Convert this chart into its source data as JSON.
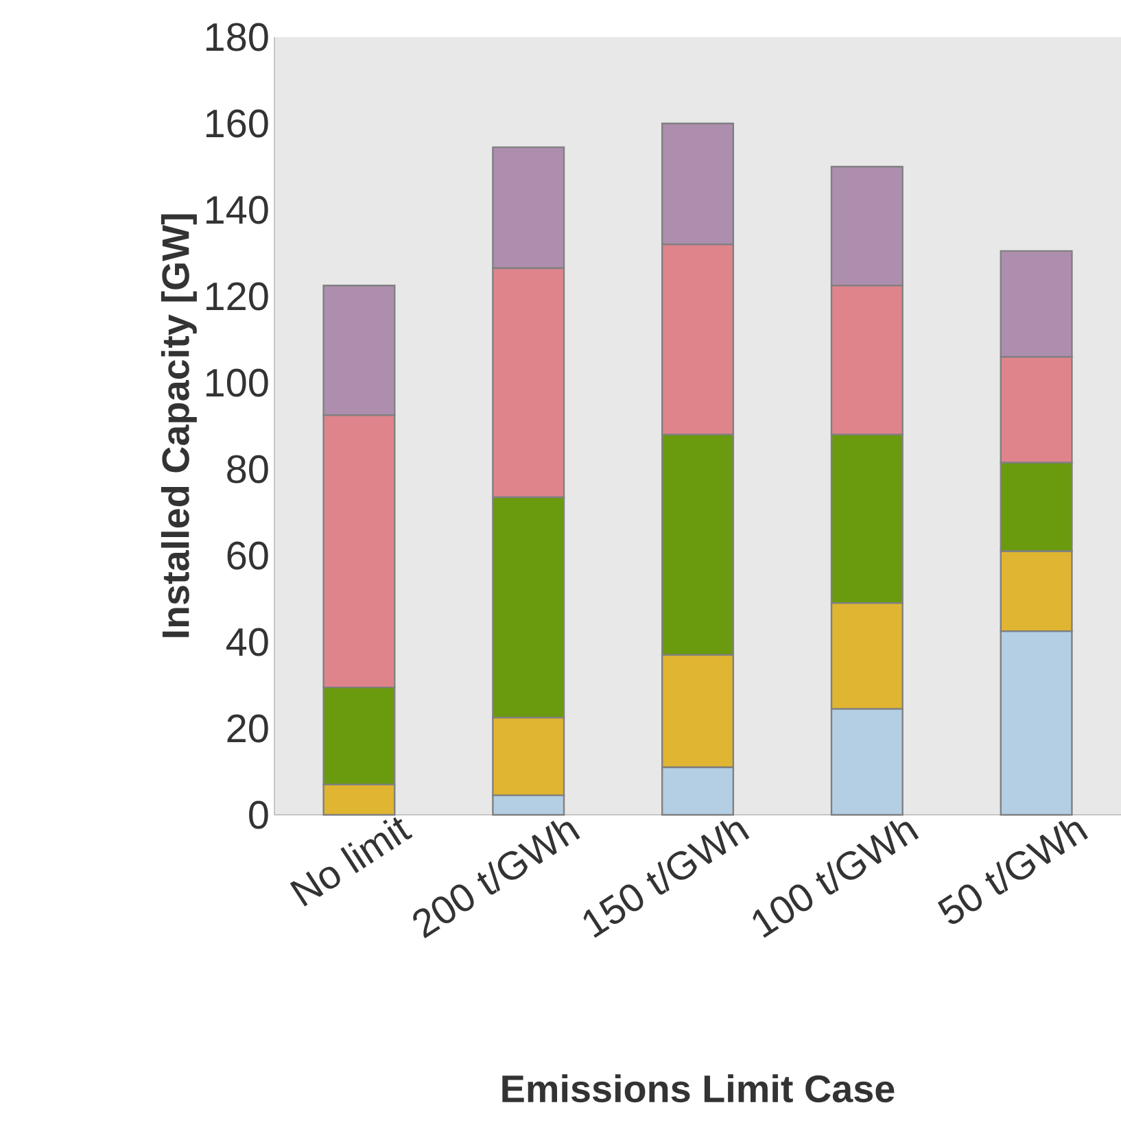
{
  "chart_data": {
    "type": "bar",
    "stacked": true,
    "xlabel": "Emissions Limit Case",
    "ylabel": "Installed Capacity [GW]",
    "categories": [
      "No limit",
      "200 t/GWh",
      "150 t/GWh",
      "100 t/GWh",
      "50 t/GWh"
    ],
    "series": [
      {
        "color": "#b4cfe4",
        "values": [
          0,
          4.5,
          11,
          24.5,
          42.5
        ]
      },
      {
        "color": "#e0b531",
        "values": [
          7,
          18,
          26,
          24.5,
          18.5
        ]
      },
      {
        "color": "#6a9a0d",
        "values": [
          22.5,
          51,
          51,
          39,
          20.5
        ]
      },
      {
        "color": "#e0848c",
        "values": [
          63,
          53,
          44,
          34.5,
          24.5
        ]
      },
      {
        "color": "#ae8eae",
        "values": [
          30,
          28,
          28,
          27.5,
          24.5
        ]
      }
    ],
    "ylim": [
      0,
      180
    ],
    "yticks": [
      0,
      20,
      40,
      60,
      80,
      100,
      120,
      140,
      160,
      180
    ],
    "grid": false
  }
}
